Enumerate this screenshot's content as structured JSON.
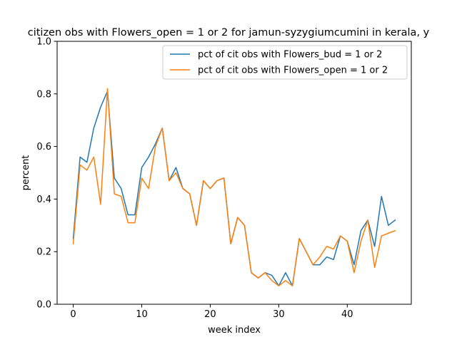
{
  "chart_data": {
    "type": "line",
    "title": "citizen obs with Flowers_open = 1 or 2 for jamun-syzygiumcumini in kerala, y",
    "xlabel": "week index",
    "ylabel": "percent",
    "xlim": [
      -2.35,
      49.35
    ],
    "ylim": [
      0.0,
      1.0
    ],
    "xticks": [
      0,
      10,
      20,
      30,
      40
    ],
    "yticks": [
      0.0,
      0.2,
      0.4,
      0.6,
      0.8,
      1.0
    ],
    "ytick_labels": [
      "0.0",
      "0.2",
      "0.4",
      "0.6",
      "0.8",
      "1.0"
    ],
    "grid": false,
    "legend_position": "upper right",
    "x": [
      0,
      1,
      2,
      3,
      4,
      5,
      6,
      7,
      8,
      9,
      10,
      11,
      12,
      13,
      14,
      15,
      16,
      17,
      18,
      19,
      20,
      21,
      22,
      23,
      24,
      25,
      26,
      27,
      28,
      29,
      30,
      31,
      32,
      33,
      34,
      35,
      36,
      37,
      38,
      39,
      40,
      41,
      42,
      43,
      44,
      45,
      46,
      47
    ],
    "series": [
      {
        "name": "pct of cit obs with Flowers_bud = 1 or 2",
        "color": "#1f77b4",
        "values": [
          0.25,
          0.56,
          0.54,
          0.67,
          0.75,
          0.81,
          0.48,
          0.44,
          0.34,
          0.34,
          0.52,
          0.56,
          0.61,
          0.67,
          0.47,
          0.52,
          0.44,
          0.42,
          0.3,
          0.47,
          0.44,
          0.47,
          0.48,
          0.23,
          0.33,
          0.3,
          0.12,
          0.1,
          0.12,
          0.11,
          0.07,
          0.12,
          0.07,
          0.25,
          0.2,
          0.15,
          0.15,
          0.18,
          0.17,
          0.26,
          0.24,
          0.15,
          0.28,
          0.32,
          0.22,
          0.41,
          0.3,
          0.32
        ]
      },
      {
        "name": "pct of cit obs with Flowers_open = 1 or 2",
        "color": "#ff7f0e",
        "values": [
          0.23,
          0.53,
          0.51,
          0.56,
          0.38,
          0.82,
          0.42,
          0.41,
          0.31,
          0.31,
          0.48,
          0.44,
          0.6,
          0.67,
          0.47,
          0.5,
          0.44,
          0.42,
          0.3,
          0.47,
          0.44,
          0.47,
          0.48,
          0.23,
          0.33,
          0.3,
          0.12,
          0.1,
          0.12,
          0.09,
          0.07,
          0.09,
          0.07,
          0.25,
          0.2,
          0.15,
          0.18,
          0.22,
          0.21,
          0.26,
          0.24,
          0.12,
          0.24,
          0.32,
          0.14,
          0.26,
          0.27,
          0.28
        ]
      }
    ]
  }
}
